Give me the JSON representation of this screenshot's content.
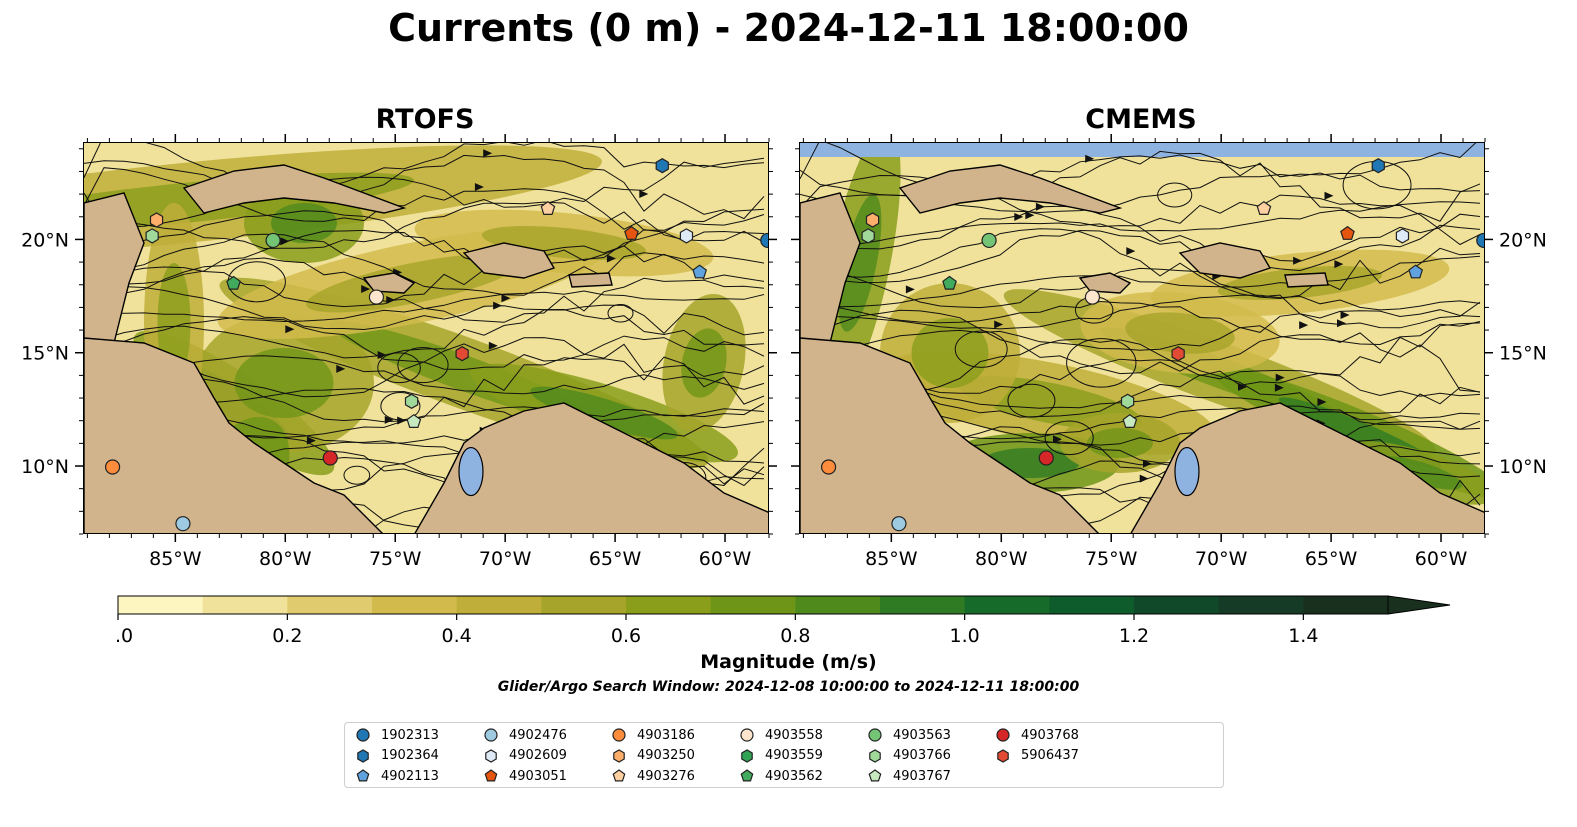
{
  "title": "Currents (0 m) - 2024-12-11 18:00:00",
  "panels": [
    {
      "title": "RTOFS"
    },
    {
      "title": "CMEMS"
    }
  ],
  "axes": {
    "lon_ticks": [
      "85°W",
      "80°W",
      "75°W",
      "70°W",
      "65°W",
      "60°W"
    ],
    "lon_values": [
      -85,
      -80,
      -75,
      -70,
      -65,
      -60
    ],
    "lat_ticks": [
      "20°N",
      "15°N",
      "10°N"
    ],
    "lat_values": [
      20,
      15,
      10
    ],
    "lon_range": [
      -89.2,
      -58.0
    ],
    "lat_range": [
      7.0,
      24.3
    ]
  },
  "colorbar": {
    "label": "Magnitude (m/s)",
    "tick_labels": [
      "0.0",
      "0.2",
      "0.4",
      "0.6",
      "0.8",
      "1.0",
      "1.2",
      "1.4"
    ],
    "tick_values": [
      0.0,
      0.2,
      0.4,
      0.6,
      0.8,
      1.0,
      1.2,
      1.4
    ],
    "range": [
      0,
      1.5
    ],
    "extend": "max",
    "colors": [
      "#fdf6c0",
      "#f0e29a",
      "#e0cc6e",
      "#d2bb4c",
      "#bfae3a",
      "#a6a42a",
      "#8a9e1c",
      "#6f9518",
      "#4f8a1d",
      "#2f7b23",
      "#176b2a",
      "#0e5c2b",
      "#10492a",
      "#153a25",
      "#19301f"
    ]
  },
  "search_window": "Glider/Argo Search Window: 2024-12-08 10:00:00 to 2024-12-11 18:00:00",
  "floats": [
    {
      "id": "1902313",
      "color": "#1f77b4",
      "marker": "circle"
    },
    {
      "id": "1902364",
      "color": "#1f77b4",
      "marker": "hexagon"
    },
    {
      "id": "4902113",
      "color": "#5fa2dd",
      "marker": "pentagon"
    },
    {
      "id": "4902476",
      "color": "#9ecae1",
      "marker": "circle"
    },
    {
      "id": "4902609",
      "color": "#deebf7",
      "marker": "hexagon"
    },
    {
      "id": "4903051",
      "color": "#e6550d",
      "marker": "pentagon"
    },
    {
      "id": "4903186",
      "color": "#fd8d3c",
      "marker": "circle"
    },
    {
      "id": "4903250",
      "color": "#fdae6b",
      "marker": "hexagon"
    },
    {
      "id": "4903276",
      "color": "#fdd0a2",
      "marker": "pentagon"
    },
    {
      "id": "4903558",
      "color": "#fee6ce",
      "marker": "circle"
    },
    {
      "id": "4903559",
      "color": "#31a354",
      "marker": "hexagon"
    },
    {
      "id": "4903562",
      "color": "#41ab5d",
      "marker": "pentagon"
    },
    {
      "id": "4903563",
      "color": "#74c476",
      "marker": "circle"
    },
    {
      "id": "4903766",
      "color": "#a1d99b",
      "marker": "hexagon"
    },
    {
      "id": "4903767",
      "color": "#c7e9c0",
      "marker": "pentagon"
    },
    {
      "id": "4903768",
      "color": "#d62728",
      "marker": "circle"
    },
    {
      "id": "5906437",
      "color": "#e34a33",
      "marker": "hexagon"
    }
  ],
  "map_markers": {
    "rtofs": [
      {
        "float": "1902364",
        "lon": -62.9,
        "lat": 23.3
      },
      {
        "float": "4903276",
        "lon": -68.1,
        "lat": 21.4
      },
      {
        "float": "4903250",
        "lon": -85.9,
        "lat": 20.9
      },
      {
        "float": "4903766",
        "lon": -86.1,
        "lat": 20.2
      },
      {
        "float": "4903563",
        "lon": -80.6,
        "lat": 20.0
      },
      {
        "float": "4903051",
        "lon": -64.3,
        "lat": 20.3
      },
      {
        "float": "4902609",
        "lon": -61.8,
        "lat": 20.2
      },
      {
        "float": "1902313",
        "lon": -58.1,
        "lat": 20.0
      },
      {
        "float": "4902113",
        "lon": -61.2,
        "lat": 18.6
      },
      {
        "float": "4903562",
        "lon": -82.4,
        "lat": 18.1
      },
      {
        "float": "4903558",
        "lon": -75.9,
        "lat": 17.5
      },
      {
        "float": "5906437",
        "lon": -72.0,
        "lat": 15.0
      },
      {
        "float": "4903766",
        "lon": -74.3,
        "lat": 12.9
      },
      {
        "float": "4903767",
        "lon": -74.2,
        "lat": 12.0
      },
      {
        "float": "4903186",
        "lon": -87.9,
        "lat": 10.0
      },
      {
        "float": "4903768",
        "lon": -78.0,
        "lat": 10.4
      },
      {
        "float": "4902476",
        "lon": -84.7,
        "lat": 7.5
      }
    ],
    "cmems": [
      {
        "float": "1902364",
        "lon": -62.9,
        "lat": 23.3
      },
      {
        "float": "4903276",
        "lon": -68.1,
        "lat": 21.4
      },
      {
        "float": "4903250",
        "lon": -85.9,
        "lat": 20.9
      },
      {
        "float": "4903766",
        "lon": -86.1,
        "lat": 20.2
      },
      {
        "float": "4903563",
        "lon": -80.6,
        "lat": 20.0
      },
      {
        "float": "4903051",
        "lon": -64.3,
        "lat": 20.3
      },
      {
        "float": "4902609",
        "lon": -61.8,
        "lat": 20.2
      },
      {
        "float": "1902313",
        "lon": -58.1,
        "lat": 20.0
      },
      {
        "float": "4902113",
        "lon": -61.2,
        "lat": 18.6
      },
      {
        "float": "4903562",
        "lon": -82.4,
        "lat": 18.1
      },
      {
        "float": "4903558",
        "lon": -75.9,
        "lat": 17.5
      },
      {
        "float": "5906437",
        "lon": -72.0,
        "lat": 15.0
      },
      {
        "float": "4903766",
        "lon": -74.3,
        "lat": 12.9
      },
      {
        "float": "4903767",
        "lon": -74.2,
        "lat": 12.0
      },
      {
        "float": "4903186",
        "lon": -87.9,
        "lat": 10.0
      },
      {
        "float": "4903768",
        "lon": -78.0,
        "lat": 10.4
      },
      {
        "float": "4902476",
        "lon": -84.7,
        "lat": 7.5
      }
    ]
  },
  "colors": {
    "land": "#d2b48c",
    "lake": "#8fb3e0",
    "river": "#9db8d9",
    "missing_data": "#8fb3e0",
    "ocean_low": "#fdf6c0"
  }
}
